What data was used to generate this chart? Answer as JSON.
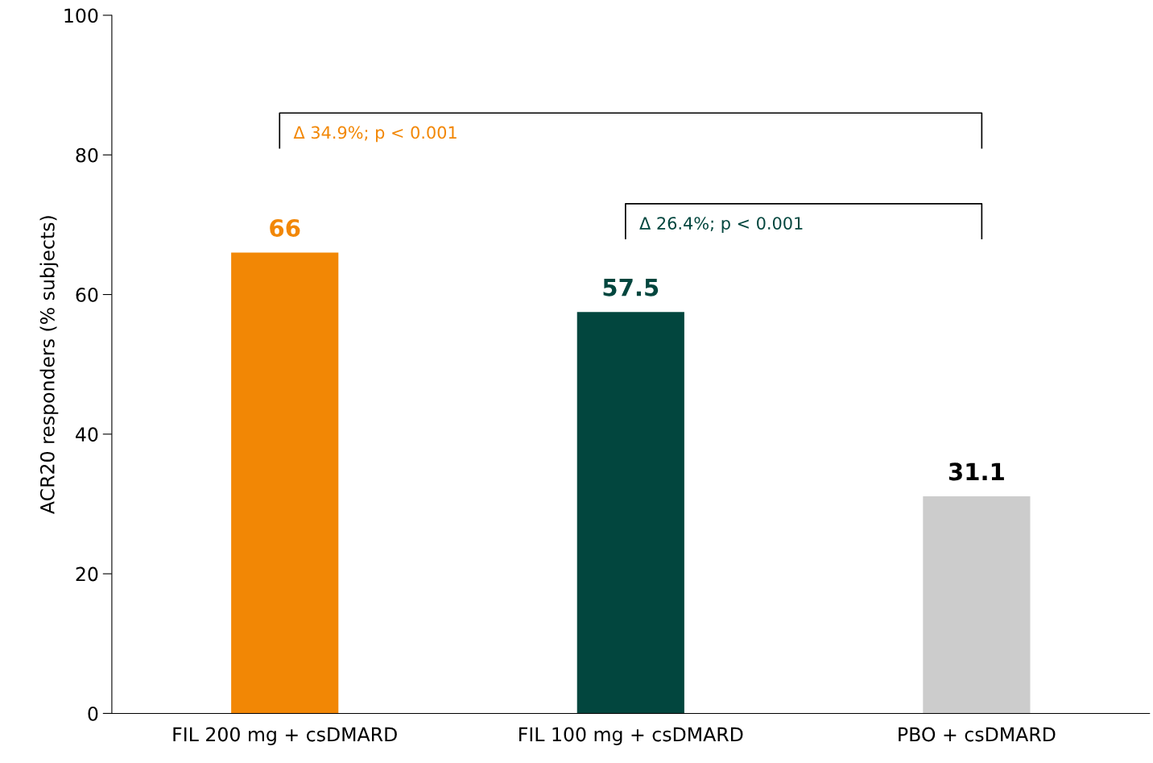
{
  "chart_data": {
    "type": "bar",
    "ylabel": "ACR20 responders (% subjects)",
    "categories": [
      "FIL 200 mg + csDMARD",
      "FIL 100 mg + csDMARD",
      "PBO + csDMARD"
    ],
    "values": [
      66,
      57.5,
      31.1
    ],
    "colors": [
      "#f28705",
      "#02463e",
      "#cccccc"
    ],
    "ylim": [
      0,
      100
    ],
    "yticks": [
      0,
      20,
      40,
      60,
      80,
      100
    ],
    "data_labels": true,
    "grid": false,
    "legend": false,
    "annotations": [
      "Δ 34.9%; p < 0.001",
      "Δ 26.4%; p < 0.001"
    ]
  }
}
